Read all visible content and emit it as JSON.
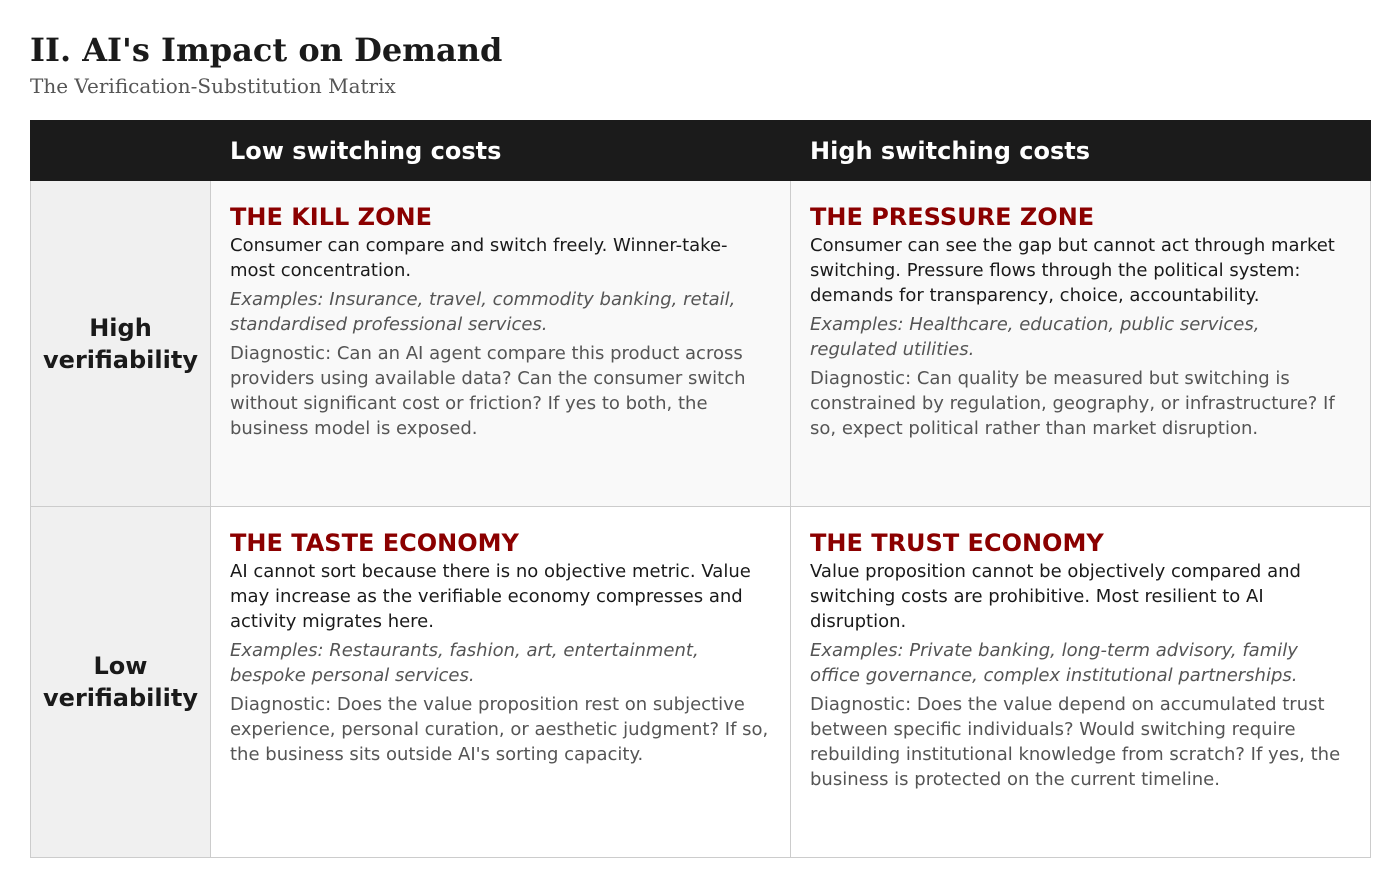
{
  "header": {
    "title": "II. AI's Impact on Demand",
    "subtitle": "The Verification-Substitution Matrix"
  },
  "matrix": {
    "columns": [
      "Low switching costs",
      "High switching costs"
    ],
    "rows": [
      {
        "label_lines": [
          "High",
          "verifiability"
        ],
        "cells": [
          {
            "title": "THE KILL ZONE",
            "description": "Consumer can compare and switch freely. Winner-take-most concentration.",
            "examples": "Examples: Insurance, travel, commodity banking, retail, standardised professional services.",
            "diagnostic": "Diagnostic: Can an AI agent compare this product across providers using available data? Can the consumer switch without significant cost or friction? If yes to both, the business model is exposed."
          },
          {
            "title": "THE PRESSURE ZONE",
            "description": "Consumer can see the gap but cannot act through market switching. Pressure flows through the political system: demands for transparency, choice, accountability.",
            "examples": "Examples: Healthcare, education, public services, regulated utilities.",
            "diagnostic": "Diagnostic: Can quality be measured but switching is constrained by regulation, geography, or infrastructure? If so, expect political rather than market disruption."
          }
        ]
      },
      {
        "label_lines": [
          "Low",
          "verifiability"
        ],
        "cells": [
          {
            "title": "THE TASTE ECONOMY",
            "description": "AI cannot sort because there is no objective metric. Value may increase as the verifiable economy compresses and activity migrates here.",
            "examples": "Examples: Restaurants, fashion, art, entertainment, bespoke personal services.",
            "diagnostic": "Diagnostic: Does the value proposition rest on subjective experience, personal curation, or aesthetic judgment? If so, the business sits outside AI's sorting capacity."
          },
          {
            "title": "THE TRUST ECONOMY",
            "description": "Value proposition cannot be objectively compared and switching costs are prohibitive. Most resilient to AI disruption.",
            "examples": "Examples: Private banking, long-term advisory, family office governance, complex institutional partnerships.",
            "diagnostic": "Diagnostic: Does the value depend on accumulated trust between specific individuals? Would switching require rebuilding institutional knowledge from scratch? If yes, the business is protected on the current timeline."
          }
        ]
      }
    ]
  }
}
